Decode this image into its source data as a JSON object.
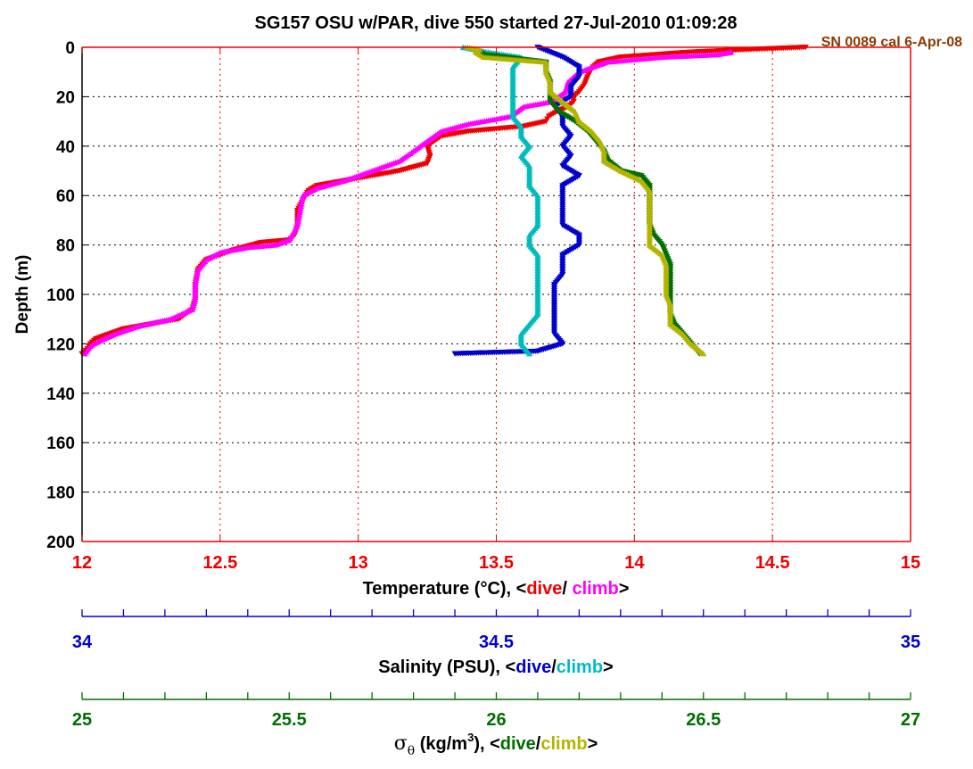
{
  "chart_data": {
    "type": "scatter",
    "title": "SG157 OSU w/PAR, dive 550 started 27-Jul-2010 01:09:28",
    "calibration_note": "SN 0089 cal 6-Apr-08",
    "ylabel": "Depth (m)",
    "ylim": [
      0,
      200
    ],
    "y_reversed": true,
    "y_ticks": [
      "0",
      "20",
      "40",
      "60",
      "80",
      "100",
      "120",
      "140",
      "160",
      "180",
      "200"
    ],
    "grid": true,
    "colors": {
      "temp_dive": "#ee0000",
      "temp_climb": "#ff00ff",
      "sal_dive": "#0000cc",
      "sal_climb": "#00bbbb",
      "sigma_dive": "#006e00",
      "sigma_climb": "#b4b400",
      "cal_note": "#8b3a00"
    },
    "axes": [
      {
        "id": "temperature",
        "label_prefix": "Temperature (°C), <",
        "label_dive": "dive",
        "label_sep": "/ ",
        "label_climb": "climb",
        "label_suffix": ">",
        "color": "#ee0000",
        "range": [
          12,
          15
        ],
        "ticks": [
          "12",
          "12.5",
          "13",
          "13.5",
          "14",
          "14.5",
          "15"
        ]
      },
      {
        "id": "salinity",
        "label_prefix": "Salinity (PSU), <",
        "label_dive": "dive",
        "label_sep": "/",
        "label_climb": "climb",
        "label_suffix": ">",
        "color": "#0000cc",
        "range": [
          34,
          35
        ],
        "ticks": [
          "34",
          "34.5",
          "35"
        ]
      },
      {
        "id": "sigma",
        "label_prefix": "σθ (kg/m3), <",
        "label_dive": "dive",
        "label_sep": "/",
        "label_climb": "climb",
        "label_suffix": ">",
        "color": "#006e00",
        "range": [
          25,
          27
        ],
        "ticks": [
          "25",
          "25.5",
          "26",
          "26.5",
          "27"
        ]
      }
    ],
    "series": [
      {
        "axis": "temperature",
        "role": "dive",
        "marker": "down-triangle",
        "points": [
          [
            14.62,
            0
          ],
          [
            14.4,
            1
          ],
          [
            14.2,
            2
          ],
          [
            13.95,
            4
          ],
          [
            13.87,
            6
          ],
          [
            13.85,
            8
          ],
          [
            13.83,
            12
          ],
          [
            13.82,
            15
          ],
          [
            13.8,
            18
          ],
          [
            13.78,
            20
          ],
          [
            13.78,
            22
          ],
          [
            13.76,
            24
          ],
          [
            13.72,
            26
          ],
          [
            13.69,
            28
          ],
          [
            13.68,
            30
          ],
          [
            13.6,
            32
          ],
          [
            13.4,
            34
          ],
          [
            13.3,
            36
          ],
          [
            13.25,
            40
          ],
          [
            13.26,
            44
          ],
          [
            13.25,
            47
          ],
          [
            13.15,
            50
          ],
          [
            13.05,
            52
          ],
          [
            12.95,
            54
          ],
          [
            12.85,
            56
          ],
          [
            12.82,
            58
          ],
          [
            12.8,
            62
          ],
          [
            12.78,
            66
          ],
          [
            12.78,
            72
          ],
          [
            12.77,
            76
          ],
          [
            12.75,
            78
          ],
          [
            12.65,
            79
          ],
          [
            12.55,
            82
          ],
          [
            12.5,
            84
          ],
          [
            12.45,
            86
          ],
          [
            12.42,
            90
          ],
          [
            12.41,
            96
          ],
          [
            12.41,
            102
          ],
          [
            12.4,
            106
          ],
          [
            12.35,
            110
          ],
          [
            12.25,
            112
          ],
          [
            12.15,
            114
          ],
          [
            12.1,
            116
          ],
          [
            12.05,
            118
          ],
          [
            12.03,
            120
          ],
          [
            12.02,
            122
          ],
          [
            12.0,
            124
          ]
        ]
      },
      {
        "axis": "temperature",
        "role": "climb",
        "marker": "up-triangle",
        "points": [
          [
            14.35,
            2
          ],
          [
            14.3,
            3
          ],
          [
            14.1,
            4
          ],
          [
            13.9,
            6
          ],
          [
            13.85,
            8
          ],
          [
            13.8,
            10
          ],
          [
            13.78,
            12
          ],
          [
            13.76,
            14
          ],
          [
            13.75,
            18
          ],
          [
            13.7,
            22
          ],
          [
            13.6,
            24
          ],
          [
            13.55,
            28
          ],
          [
            13.4,
            31
          ],
          [
            13.3,
            34
          ],
          [
            13.25,
            38
          ],
          [
            13.2,
            42
          ],
          [
            13.15,
            46
          ],
          [
            13.05,
            50
          ],
          [
            12.95,
            54
          ],
          [
            12.85,
            57
          ],
          [
            12.8,
            60
          ],
          [
            12.79,
            66
          ],
          [
            12.78,
            72
          ],
          [
            12.75,
            78
          ],
          [
            12.7,
            80
          ],
          [
            12.6,
            81
          ],
          [
            12.5,
            83
          ],
          [
            12.45,
            86
          ],
          [
            12.42,
            90
          ],
          [
            12.41,
            96
          ],
          [
            12.41,
            102
          ],
          [
            12.4,
            106
          ],
          [
            12.32,
            110
          ],
          [
            12.2,
            113
          ],
          [
            12.12,
            116
          ],
          [
            12.06,
            119
          ],
          [
            12.03,
            121
          ],
          [
            12.01,
            124
          ]
        ]
      },
      {
        "axis": "salinity",
        "role": "dive",
        "marker": "down-triangle",
        "points": [
          [
            34.55,
            0
          ],
          [
            34.58,
            4
          ],
          [
            34.6,
            8
          ],
          [
            34.6,
            12
          ],
          [
            34.59,
            16
          ],
          [
            34.59,
            20
          ],
          [
            34.57,
            24
          ],
          [
            34.58,
            28
          ],
          [
            34.58,
            32
          ],
          [
            34.59,
            36
          ],
          [
            34.58,
            40
          ],
          [
            34.59,
            44
          ],
          [
            34.58,
            48
          ],
          [
            34.6,
            52
          ],
          [
            34.58,
            56
          ],
          [
            34.58,
            60
          ],
          [
            34.58,
            66
          ],
          [
            34.58,
            72
          ],
          [
            34.6,
            76
          ],
          [
            34.6,
            80
          ],
          [
            34.58,
            84
          ],
          [
            34.58,
            88
          ],
          [
            34.58,
            92
          ],
          [
            34.57,
            96
          ],
          [
            34.57,
            100
          ],
          [
            34.57,
            104
          ],
          [
            34.57,
            108
          ],
          [
            34.57,
            112
          ],
          [
            34.57,
            116
          ],
          [
            34.58,
            120
          ],
          [
            34.55,
            123
          ],
          [
            34.45,
            124
          ]
        ]
      },
      {
        "axis": "salinity",
        "role": "climb",
        "marker": "up-triangle",
        "points": [
          [
            34.46,
            0
          ],
          [
            34.49,
            2
          ],
          [
            34.53,
            4
          ],
          [
            34.52,
            8
          ],
          [
            34.52,
            12
          ],
          [
            34.52,
            16
          ],
          [
            34.52,
            20
          ],
          [
            34.52,
            24
          ],
          [
            34.52,
            28
          ],
          [
            34.53,
            32
          ],
          [
            34.53,
            36
          ],
          [
            34.54,
            40
          ],
          [
            34.53,
            44
          ],
          [
            34.54,
            48
          ],
          [
            34.54,
            52
          ],
          [
            34.54,
            56
          ],
          [
            34.55,
            60
          ],
          [
            34.55,
            66
          ],
          [
            34.55,
            72
          ],
          [
            34.54,
            76
          ],
          [
            34.54,
            80
          ],
          [
            34.55,
            84
          ],
          [
            34.55,
            88
          ],
          [
            34.55,
            92
          ],
          [
            34.55,
            96
          ],
          [
            34.55,
            100
          ],
          [
            34.55,
            104
          ],
          [
            34.55,
            108
          ],
          [
            34.54,
            112
          ],
          [
            34.53,
            116
          ],
          [
            34.53,
            120
          ],
          [
            34.54,
            124
          ]
        ]
      },
      {
        "axis": "sigma",
        "role": "dive",
        "marker": "down-triangle",
        "points": [
          [
            25.95,
            1
          ],
          [
            25.97,
            3
          ],
          [
            26.12,
            6
          ],
          [
            26.12,
            10
          ],
          [
            26.13,
            14
          ],
          [
            26.13,
            18
          ],
          [
            26.13,
            22
          ],
          [
            26.15,
            26
          ],
          [
            26.19,
            30
          ],
          [
            26.22,
            34
          ],
          [
            26.24,
            38
          ],
          [
            26.26,
            42
          ],
          [
            26.27,
            46
          ],
          [
            26.3,
            50
          ],
          [
            26.35,
            52
          ],
          [
            26.37,
            56
          ],
          [
            26.37,
            60
          ],
          [
            26.37,
            66
          ],
          [
            26.37,
            72
          ],
          [
            26.38,
            76
          ],
          [
            26.4,
            80
          ],
          [
            26.41,
            84
          ],
          [
            26.42,
            88
          ],
          [
            26.42,
            92
          ],
          [
            26.42,
            96
          ],
          [
            26.42,
            100
          ],
          [
            26.42,
            104
          ],
          [
            26.42,
            108
          ],
          [
            26.43,
            112
          ],
          [
            26.45,
            116
          ],
          [
            26.47,
            120
          ],
          [
            26.49,
            124
          ]
        ]
      },
      {
        "axis": "sigma",
        "role": "climb",
        "marker": "up-triangle",
        "points": [
          [
            25.93,
            0
          ],
          [
            25.96,
            1
          ],
          [
            25.95,
            2
          ],
          [
            25.97,
            4
          ],
          [
            26.12,
            6
          ],
          [
            26.12,
            10
          ],
          [
            26.13,
            14
          ],
          [
            26.13,
            18
          ],
          [
            26.16,
            22
          ],
          [
            26.19,
            26
          ],
          [
            26.2,
            30
          ],
          [
            26.23,
            34
          ],
          [
            26.25,
            38
          ],
          [
            26.26,
            42
          ],
          [
            26.26,
            46
          ],
          [
            26.3,
            50
          ],
          [
            26.35,
            54
          ],
          [
            26.37,
            58
          ],
          [
            26.37,
            64
          ],
          [
            26.37,
            70
          ],
          [
            26.37,
            76
          ],
          [
            26.37,
            80
          ],
          [
            26.4,
            84
          ],
          [
            26.41,
            88
          ],
          [
            26.41,
            92
          ],
          [
            26.41,
            96
          ],
          [
            26.41,
            100
          ],
          [
            26.42,
            104
          ],
          [
            26.42,
            108
          ],
          [
            26.42,
            112
          ],
          [
            26.45,
            116
          ],
          [
            26.47,
            120
          ],
          [
            26.5,
            124
          ]
        ]
      }
    ]
  }
}
